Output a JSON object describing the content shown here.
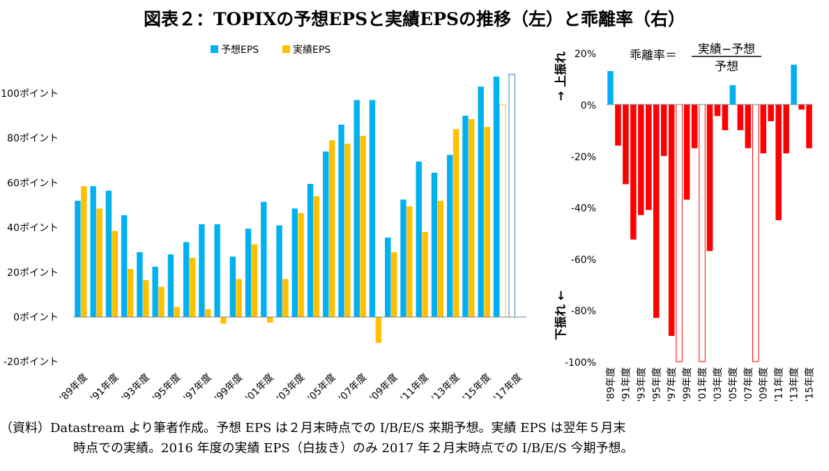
{
  "title": "図表２：TOPIXの予想EPSと実績EPSの推移（左）と乖離率（右）",
  "note": {
    "line1": "（資料）Datastream より筆者作成。予想 EPS は２月末時点での I/B/E/S 来期予想。実績 EPS は翌年５月末",
    "line2": "時点での実績。2016 年度の実績 EPS（白抜き）のみ 2017 年２月末時点での I/B/E/S 今期予想。"
  },
  "chart_data": [
    {
      "type": "bar",
      "categories": [
        "'89年度",
        "'90年度",
        "'91年度",
        "'92年度",
        "'93年度",
        "'94年度",
        "'95年度",
        "'96年度",
        "'97年度",
        "'98年度",
        "'99年度",
        "'00年度",
        "'01年度",
        "'02年度",
        "'03年度",
        "'04年度",
        "'05年度",
        "'06年度",
        "'07年度",
        "'08年度",
        "'09年度",
        "'10年度",
        "'11年度",
        "'12年度",
        "'13年度",
        "'14年度",
        "'15年度",
        "'16年度",
        "'17年度"
      ],
      "tick_labels_x": [
        "'89年度",
        "'91年度",
        "'93年度",
        "'95年度",
        "'97年度",
        "'99年度",
        "'01年度",
        "'03年度",
        "'05年度",
        "'07年度",
        "'09年度",
        "'11年度",
        "'13年度",
        "'15年度",
        "'17年度"
      ],
      "series": [
        {
          "name": "予想EPS",
          "color": "#00B0F0",
          "values": [
            52,
            58.5,
            56.5,
            45.5,
            29,
            22.5,
            28,
            33.5,
            41.5,
            41.5,
            27,
            39.5,
            51.5,
            41,
            48.5,
            59.5,
            74,
            86,
            97,
            97,
            35.5,
            52.5,
            69.5,
            64.5,
            72.5,
            90,
            103,
            107.5,
            108.5
          ],
          "hollow_categories": [
            "'17年度"
          ]
        },
        {
          "name": "実績EPS",
          "color": "#FFC000",
          "values": [
            58.5,
            48.5,
            38.5,
            21.5,
            16.5,
            13.5,
            4.5,
            26.5,
            3.5,
            -3,
            17,
            32.5,
            -2.5,
            17,
            46.5,
            54,
            79,
            77.5,
            81,
            -11.5,
            29,
            49.5,
            38,
            52,
            84,
            88.5,
            85,
            95,
            null
          ],
          "hollow_categories": [
            "'16年度"
          ]
        }
      ],
      "ylim": [
        -20,
        110
      ],
      "yticks": [
        -20,
        0,
        20,
        40,
        60,
        80,
        100
      ],
      "ytick_unit": "ポイント",
      "legend": "top-center",
      "grid": false
    },
    {
      "type": "bar",
      "annotation": {
        "lhs": "乖離率＝",
        "numerator": "実績−予想",
        "denominator": "予想"
      },
      "side_labels": {
        "up": "→ 上振れ",
        "down": "下振れ ←"
      },
      "categories": [
        "'89年度",
        "'90年度",
        "'91年度",
        "'92年度",
        "'93年度",
        "'94年度",
        "'95年度",
        "'96年度",
        "'97年度",
        "'98年度",
        "'99年度",
        "'00年度",
        "'01年度",
        "'02年度",
        "'03年度",
        "'04年度",
        "'05年度",
        "'06年度",
        "'07年度",
        "'08年度",
        "'09年度",
        "'10年度",
        "'11年度",
        "'12年度",
        "'13年度",
        "'14年度",
        "'15年度"
      ],
      "tick_labels_x": [
        "'89年度",
        "'91年度",
        "'93年度",
        "'95年度",
        "'97年度",
        "'99年度",
        "'01年度",
        "'03年度",
        "'05年度",
        "'07年度",
        "'09年度",
        "'11年度",
        "'13年度",
        "'15年度"
      ],
      "values": [
        13,
        -16,
        -31,
        -52.5,
        -43,
        -41,
        -83,
        -20,
        -90,
        -100,
        -37,
        -17,
        -100,
        -57,
        -4.5,
        -10,
        7.5,
        -10,
        -17,
        -100,
        -19,
        -6.5,
        -45,
        -19,
        15.5,
        -2,
        -17
      ],
      "hollow_categories": [
        "'98年度",
        "'01年度",
        "'08年度"
      ],
      "positive_color": "#00B0F0",
      "negative_color": "#FF0000",
      "ylim": [
        -100,
        20
      ],
      "yticks": [
        "20%",
        "0%",
        "-20%",
        "-40%",
        "-60%",
        "-80%",
        "-100%"
      ],
      "grid": false
    }
  ]
}
